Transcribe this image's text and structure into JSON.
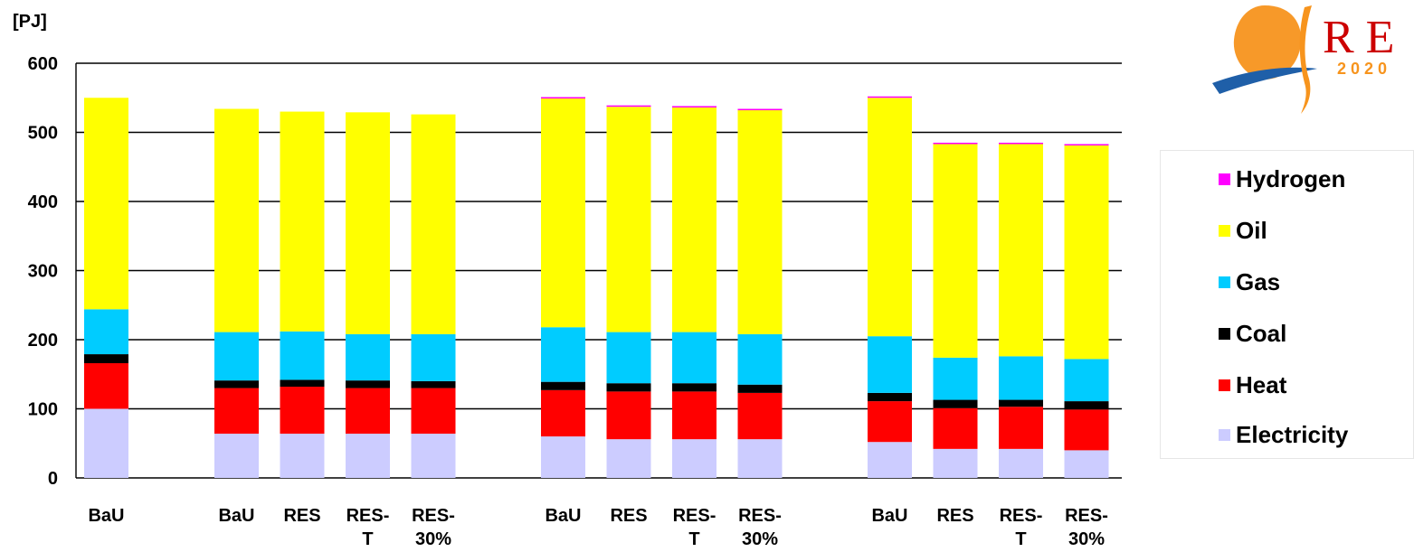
{
  "chart_data": {
    "type": "bar",
    "stacked": true,
    "ylabel": "[PJ]",
    "ylim": [
      0,
      600
    ],
    "yticks": [
      "0",
      "100",
      "200",
      "300",
      "400",
      "500",
      "600"
    ],
    "grid": true,
    "legend_position": "right",
    "groups": [
      {
        "categories": [
          [
            "BaU"
          ]
        ]
      },
      {
        "categories": [
          [
            "BaU"
          ],
          [
            "RES"
          ],
          [
            "RES-",
            "T"
          ],
          [
            "RES-",
            "30%"
          ]
        ]
      },
      {
        "categories": [
          [
            "BaU"
          ],
          [
            "RES"
          ],
          [
            "RES-",
            "T"
          ],
          [
            "RES-",
            "30%"
          ]
        ]
      },
      {
        "categories": [
          [
            "BaU"
          ],
          [
            "RES"
          ],
          [
            "RES-",
            "T"
          ],
          [
            "RES-",
            "30%"
          ]
        ]
      }
    ],
    "series": [
      {
        "name": "Electricity",
        "color": "#ccccff",
        "values": [
          100,
          64,
          64,
          64,
          64,
          60,
          56,
          56,
          56,
          52,
          42,
          42,
          40
        ]
      },
      {
        "name": "Heat",
        "color": "#ff0000",
        "values": [
          66,
          66,
          68,
          66,
          66,
          67,
          69,
          69,
          67,
          59,
          59,
          61,
          59
        ]
      },
      {
        "name": "Coal",
        "color": "#000000",
        "values": [
          13,
          11,
          10,
          11,
          10,
          12,
          12,
          12,
          12,
          12,
          12,
          10,
          12
        ]
      },
      {
        "name": "Gas",
        "color": "#00ccff",
        "values": [
          65,
          70,
          70,
          67,
          68,
          79,
          74,
          74,
          73,
          82,
          61,
          63,
          61
        ]
      },
      {
        "name": "Oil",
        "color": "#ffff00",
        "values": [
          306,
          323,
          318,
          321,
          318,
          331,
          326,
          325,
          324,
          345,
          309,
          307,
          309
        ]
      },
      {
        "name": "Hydrogen",
        "color": "#ff00ff",
        "values": [
          0,
          0,
          0,
          0,
          0,
          2,
          2,
          2,
          2,
          2,
          2,
          2,
          2
        ]
      }
    ]
  },
  "legend": {
    "items": [
      {
        "name": "Hydrogen",
        "color": "#ff00ff"
      },
      {
        "name": "Oil",
        "color": "#ffff00"
      },
      {
        "name": "Gas",
        "color": "#00ccff"
      },
      {
        "name": "Coal",
        "color": "#000000"
      },
      {
        "name": "Heat",
        "color": "#ff0000"
      },
      {
        "name": "Electricity",
        "color": "#ccccff"
      }
    ]
  },
  "logo": {
    "text_main": "R E",
    "text_sub": "2020",
    "colors": [
      "#f7941d",
      "#1f5fa8",
      "#cc0000"
    ]
  }
}
